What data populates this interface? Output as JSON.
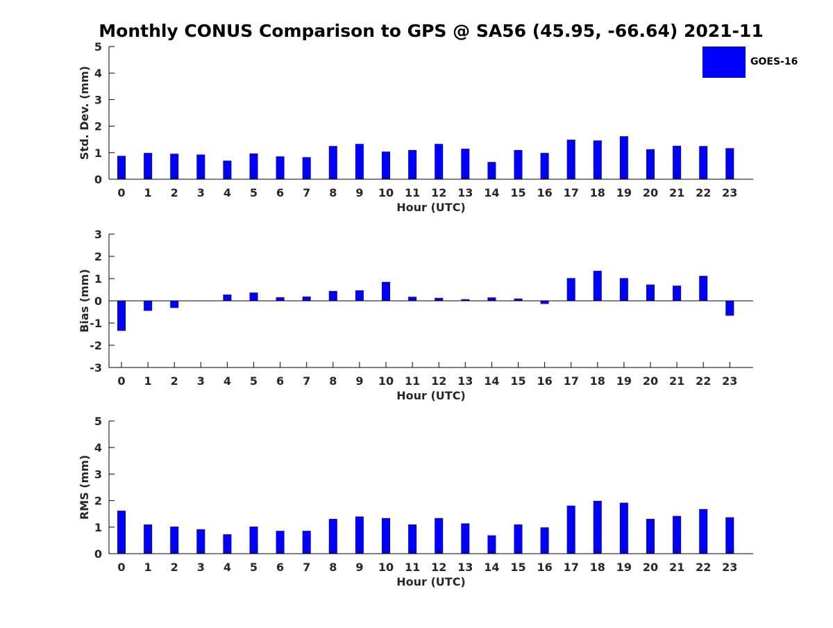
{
  "chart_data": {
    "title": "Monthly CONUS Comparison to GPS @ SA56 (45.95, -66.64) 2021-11",
    "type": "bar",
    "bar_color": "#0000ff",
    "legend": {
      "label": "GOES-16",
      "placement": "top-right"
    },
    "panels": [
      {
        "type": "bar",
        "xlabel": "Hour (UTC)",
        "ylabel": "Std. Dev. (mm)",
        "ylim": [
          0,
          5
        ],
        "yticks": [
          0,
          1,
          2,
          3,
          4,
          5
        ],
        "categories": [
          0,
          1,
          2,
          3,
          4,
          5,
          6,
          7,
          8,
          9,
          10,
          11,
          12,
          13,
          14,
          15,
          16,
          17,
          18,
          19,
          20,
          21,
          22,
          23
        ],
        "series": [
          {
            "name": "GOES-16",
            "values": [
              0.88,
              0.99,
              0.96,
              0.93,
              0.7,
              0.97,
              0.86,
              0.83,
              1.25,
              1.33,
              1.04,
              1.1,
              1.33,
              1.15,
              0.65,
              1.1,
              0.99,
              1.49,
              1.46,
              1.62,
              1.13,
              1.26,
              1.25,
              1.17
            ]
          }
        ],
        "grid": false
      },
      {
        "type": "bar",
        "xlabel": "Hour (UTC)",
        "ylabel": "Bias (mm)",
        "ylim": [
          -3,
          3
        ],
        "yticks": [
          -3,
          -2,
          -1,
          0,
          1,
          2,
          3
        ],
        "categories": [
          0,
          1,
          2,
          3,
          4,
          5,
          6,
          7,
          8,
          9,
          10,
          11,
          12,
          13,
          14,
          15,
          16,
          17,
          18,
          19,
          20,
          21,
          22,
          23
        ],
        "series": [
          {
            "name": "GOES-16",
            "values": [
              -1.35,
              -0.45,
              -0.32,
              0.0,
              0.28,
              0.37,
              0.16,
              0.19,
              0.44,
              0.47,
              0.85,
              0.18,
              0.13,
              0.07,
              0.15,
              0.1,
              -0.14,
              1.02,
              1.35,
              1.02,
              0.73,
              0.68,
              1.12,
              -0.67
            ]
          }
        ],
        "grid": false
      },
      {
        "type": "bar",
        "xlabel": "Hour (UTC)",
        "ylabel": "RMS (mm)",
        "ylim": [
          0,
          5
        ],
        "yticks": [
          0,
          1,
          2,
          3,
          4,
          5
        ],
        "categories": [
          0,
          1,
          2,
          3,
          4,
          5,
          6,
          7,
          8,
          9,
          10,
          11,
          12,
          13,
          14,
          15,
          16,
          17,
          18,
          19,
          20,
          21,
          22,
          23
        ],
        "series": [
          {
            "name": "GOES-16",
            "values": [
              1.62,
              1.1,
              1.02,
              0.92,
              0.73,
              1.02,
              0.86,
              0.86,
              1.31,
              1.4,
              1.34,
              1.1,
              1.34,
              1.14,
              0.69,
              1.1,
              0.99,
              1.81,
              1.99,
              1.92,
              1.31,
              1.42,
              1.68,
              1.37
            ]
          }
        ],
        "grid": false
      }
    ]
  }
}
